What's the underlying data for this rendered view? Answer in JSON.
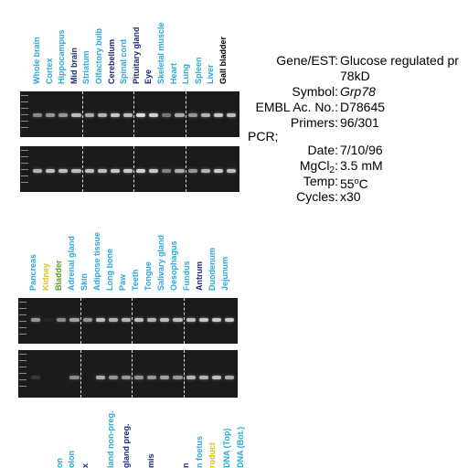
{
  "panel1": {
    "lanes": [
      {
        "label": "Whole brain",
        "color": "cyan",
        "b1": 0.55,
        "b2": 0.75
      },
      {
        "label": "Cortex",
        "color": "cyan",
        "b1": 0.6,
        "b2": 0.8
      },
      {
        "label": "Hippocampus",
        "color": "cyan",
        "b1": 0.6,
        "b2": 0.8
      },
      {
        "label": "Mid brain",
        "color": "navy",
        "b1": 0.8,
        "b2": 0.8
      },
      {
        "label": "Striatum",
        "color": "cyan",
        "b1": 0.7,
        "b2": 0.8
      },
      {
        "label": "Olfactory bulb",
        "color": "cyan",
        "b1": 0.75,
        "b2": 0.8
      },
      {
        "label": "Cerebellum",
        "color": "navy",
        "b1": 0.85,
        "b2": 0.85
      },
      {
        "label": "Spinal cord",
        "color": "cyan",
        "b1": 0.8,
        "b2": 0.85
      },
      {
        "label": "Pituitary gland",
        "color": "navy",
        "b1": 0.95,
        "b2": 0.9
      },
      {
        "label": "Eye",
        "color": "navy",
        "b1": 0.9,
        "b2": 0.85
      },
      {
        "label": "Skeletal muscle",
        "color": "cyan",
        "b1": 0.45,
        "b2": 0.5
      },
      {
        "label": "Heart",
        "color": "cyan",
        "b1": 0.7,
        "b2": 0.7
      },
      {
        "label": "Lung",
        "color": "cyan",
        "b1": 0.6,
        "b2": 0.6
      },
      {
        "label": "Spleen",
        "color": "cyan",
        "b1": 0.75,
        "b2": 0.75
      },
      {
        "label": "Liver",
        "color": "cyan",
        "b1": 0.85,
        "b2": 0.85
      },
      {
        "label": "Gall bladder",
        "color": "black",
        "b1": 0.8,
        "b2": 0.8
      }
    ]
  },
  "panel2": {
    "lanes": [
      {
        "label": "Pancreas",
        "color": "cyan",
        "b1": 0.6,
        "b2": 0.15
      },
      {
        "label": "Kidney",
        "color": "yellow",
        "b1": 0.05,
        "b2": 0.0
      },
      {
        "label": "Bladder",
        "color": "green",
        "b1": 0.55,
        "b2": 0.0
      },
      {
        "label": "Adrenal gland",
        "color": "cyan",
        "b1": 0.65,
        "b2": 0.55
      },
      {
        "label": "Skin",
        "color": "cyan",
        "b1": 0.6,
        "b2": 0.0
      },
      {
        "label": "Adipose tissue",
        "color": "cyan",
        "b1": 0.8,
        "b2": 0.7
      },
      {
        "label": "Long bone",
        "color": "cyan",
        "b1": 0.75,
        "b2": 0.6
      },
      {
        "label": "Paw",
        "color": "cyan",
        "b1": 0.75,
        "b2": 0.6
      },
      {
        "label": "Teeth",
        "color": "cyan",
        "b1": 0.8,
        "b2": 0.6
      },
      {
        "label": "Tongue",
        "color": "cyan",
        "b1": 0.75,
        "b2": 0.6
      },
      {
        "label": "Salivary gland",
        "color": "cyan",
        "b1": 0.8,
        "b2": 0.65
      },
      {
        "label": "Oesophagus",
        "color": "cyan",
        "b1": 0.8,
        "b2": 0.6
      },
      {
        "label": "Fundus",
        "color": "cyan",
        "b1": 0.8,
        "b2": 0.75
      },
      {
        "label": "Antrum",
        "color": "navy",
        "b1": 0.85,
        "b2": 0.75
      },
      {
        "label": "Duodenum",
        "color": "cyan",
        "b1": 0.85,
        "b2": 0.8
      },
      {
        "label": "Jejunum",
        "color": "cyan",
        "b1": 0.85,
        "b2": 0.7
      }
    ]
  },
  "panel3_labels": [
    {
      "label": "on",
      "color": "cyan"
    },
    {
      "label": "olon",
      "color": "cyan"
    },
    {
      "label": "x",
      "color": "navy"
    },
    {
      "label": "land non-preg.",
      "color": "cyan"
    },
    {
      "label": "gland preg.",
      "color": "navy"
    },
    {
      "label": "mis",
      "color": "navy"
    },
    {
      "label": "n",
      "color": "navy"
    },
    {
      "label": "n foetus",
      "color": "cyan"
    },
    {
      "label": "roduct",
      "color": "yellow"
    },
    {
      "label": "DNA (Top)",
      "color": "cyan"
    },
    {
      "label": "DNA (Bot.)",
      "color": "cyan"
    }
  ],
  "info": {
    "gene_key": "Gene/EST:",
    "gene_value_line1": "Glucose regulated pr",
    "gene_value_line2": "78kD",
    "symbol_key": "Symbol:",
    "symbol_value": "Grp78",
    "embl_key": "EMBL Ac. No.:",
    "embl_value": "D78645",
    "primers_key": "Primers:",
    "primers_value": "96/301",
    "pcr_heading": "PCR;",
    "date_key": "Date:",
    "date_value": "7/10/96",
    "mgcl_key_main": "MgCl",
    "mgcl_key_sub": "2",
    "mgcl_key_colon": ":",
    "mgcl_value": "3.5 mM",
    "temp_key": "Temp:",
    "temp_value_num": "55",
    "temp_value_sup": "o",
    "temp_value_unit": "C",
    "cycles_key": "Cycles:",
    "cycles_value": "x30"
  },
  "colors": {
    "cyan": "#29a8d8",
    "navy": "#1a2a7a",
    "yellow": "#d8c020",
    "green": "#5aa020",
    "black": "#000000",
    "gel": "#1b1b1b"
  }
}
